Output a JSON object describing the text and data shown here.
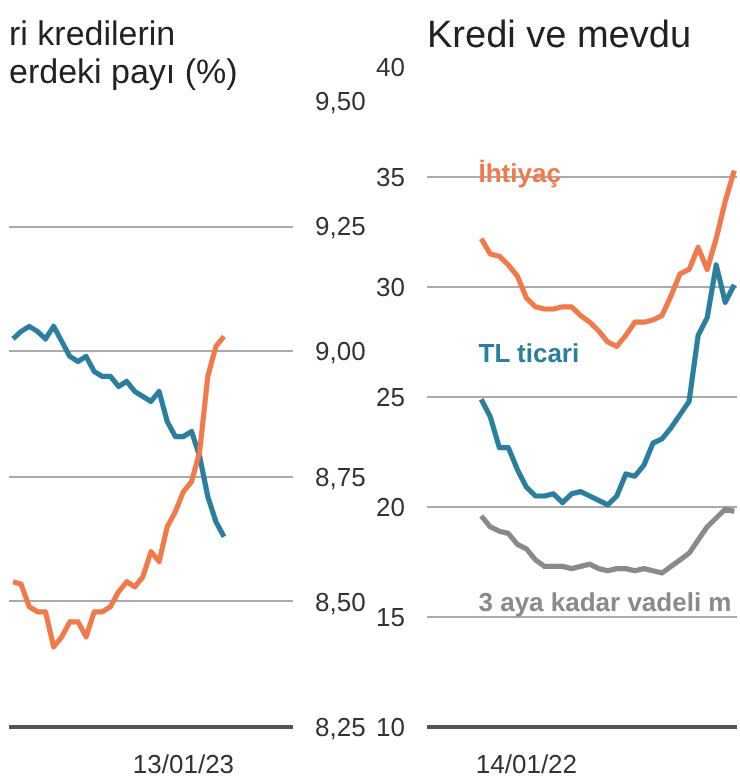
{
  "chart_data": [
    {
      "type": "line",
      "title": "ri kredilerin\nerdeki payı (%)",
      "categories": [
        null,
        null,
        null,
        null,
        null,
        null,
        null,
        null,
        null,
        null,
        null,
        null,
        null,
        null,
        null,
        null,
        null,
        null,
        null,
        null,
        null,
        "13/01/23",
        null,
        null,
        null,
        null,
        null
      ],
      "series": [
        {
          "color": "#2a7f9e",
          "values": [
            9.025,
            9.04,
            9.05,
            9.04,
            9.025,
            9.05,
            9.02,
            8.99,
            8.98,
            8.99,
            8.96,
            8.95,
            8.95,
            8.93,
            8.94,
            8.92,
            8.91,
            8.9,
            8.92,
            8.86,
            8.83,
            8.83,
            8.84,
            8.79,
            8.71,
            8.66,
            8.63
          ]
        },
        {
          "color": "#f07a4a",
          "values": [
            8.54,
            8.535,
            8.49,
            8.48,
            8.48,
            8.41,
            8.43,
            8.46,
            8.46,
            8.43,
            8.48,
            8.48,
            8.49,
            8.52,
            8.54,
            8.53,
            8.55,
            8.6,
            8.58,
            8.65,
            8.68,
            8.72,
            8.74,
            8.8,
            8.95,
            9.01,
            9.03
          ]
        }
      ],
      "ylim": [
        8.25,
        9.5
      ],
      "yticks": [
        {
          "value": 8.25,
          "label": "8,25"
        },
        {
          "value": 8.5,
          "label": "8,50"
        },
        {
          "value": 8.75,
          "label": "8,75"
        },
        {
          "value": 9.0,
          "label": "9,00"
        },
        {
          "value": 9.25,
          "label": "9,25"
        },
        {
          "value": 9.5,
          "label": "9,50"
        }
      ],
      "grid": "y",
      "marker": "none",
      "line_style": "solid"
    },
    {
      "type": "line",
      "title": "Kredi ve mevdu",
      "categories": [
        null,
        null,
        null,
        null,
        null,
        "14/01/22",
        null,
        null,
        null,
        null,
        null,
        null,
        null,
        null,
        null,
        null,
        null,
        null,
        null,
        null,
        null,
        null,
        null,
        null,
        null,
        null,
        null,
        null,
        null
      ],
      "series": [
        {
          "name": "İhtiyaç",
          "color": "#f07a4a",
          "values": [
            32.2,
            31.5,
            31.4,
            31.0,
            30.5,
            29.5,
            29.1,
            29.0,
            29.0,
            29.1,
            29.1,
            28.7,
            28.4,
            28.0,
            27.5,
            27.3,
            27.8,
            28.4,
            28.4,
            28.5,
            28.7,
            29.6,
            30.6,
            30.8,
            31.8,
            30.8,
            32.2,
            33.9,
            35.3
          ]
        },
        {
          "name": "TL ticari",
          "color": "#2a7f9e",
          "values": [
            24.9,
            24.1,
            22.7,
            22.7,
            21.7,
            20.9,
            20.5,
            20.5,
            20.6,
            20.2,
            20.6,
            20.7,
            20.5,
            20.3,
            20.1,
            20.5,
            21.5,
            21.4,
            21.9,
            22.9,
            23.1,
            23.6,
            24.2,
            24.8,
            27.8,
            28.6,
            31.0,
            29.3,
            30.1
          ]
        },
        {
          "name": "3 aya kadar vadeli m",
          "color": "#8a8a8a",
          "values": [
            19.6,
            19.1,
            18.9,
            18.8,
            18.3,
            18.1,
            17.6,
            17.3,
            17.3,
            17.3,
            17.2,
            17.3,
            17.4,
            17.2,
            17.1,
            17.2,
            17.2,
            17.1,
            17.2,
            17.1,
            17.0,
            17.3,
            17.6,
            17.9,
            18.5,
            19.1,
            19.5,
            19.9,
            19.8
          ]
        }
      ],
      "ylim": [
        10,
        40
      ],
      "yticks": [
        10,
        15,
        20,
        25,
        30,
        35,
        40
      ],
      "grid": "y",
      "marker": "none",
      "line_style": "solid"
    }
  ]
}
